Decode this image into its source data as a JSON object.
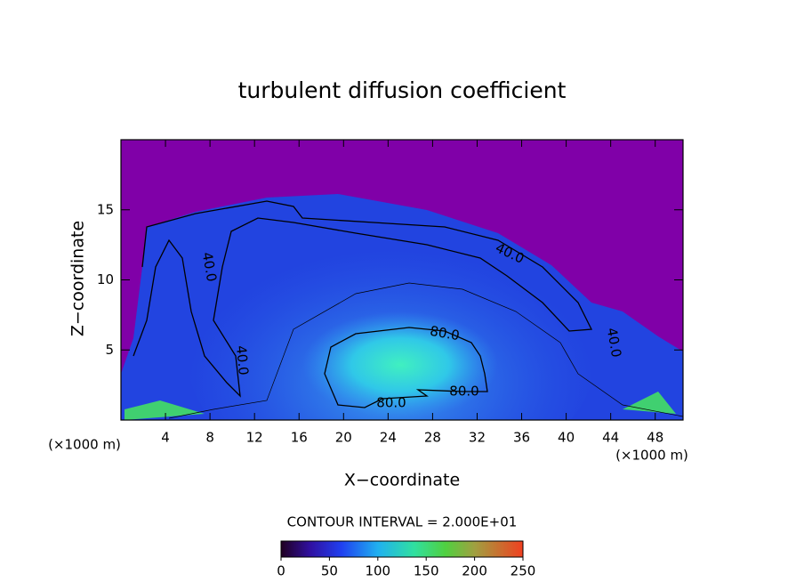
{
  "chart_data": {
    "type": "contour",
    "title": "turbulent diffusion coefficient",
    "x_label": "X−coordinate",
    "y_label": "Z−coordinate",
    "x_unit_labels": [
      "(×1000 m)",
      "(×1000 m)"
    ],
    "xlim": [
      0,
      50.5
    ],
    "xticks": [
      4,
      8,
      12,
      16,
      20,
      24,
      28,
      32,
      36,
      40,
      44,
      48
    ],
    "ylim": [
      0,
      20
    ],
    "yticks": [
      5,
      10,
      15
    ],
    "contour_interval_label": "CONTOUR INTERVAL = 2.000E+01",
    "contour_labels": [
      {
        "value": 40,
        "label": "40.0"
      },
      {
        "value": 40,
        "label": "40.0"
      },
      {
        "value": 40,
        "label": "40.0"
      },
      {
        "value": 40,
        "label": "40.0"
      },
      {
        "value": 80,
        "label": "80.0"
      },
      {
        "value": 80,
        "label": "80.0"
      },
      {
        "value": 80,
        "label": "80.0"
      }
    ],
    "colorbar": {
      "lim": [
        0,
        250
      ],
      "ticks": [
        0,
        50,
        100,
        150,
        200,
        250
      ]
    }
  }
}
